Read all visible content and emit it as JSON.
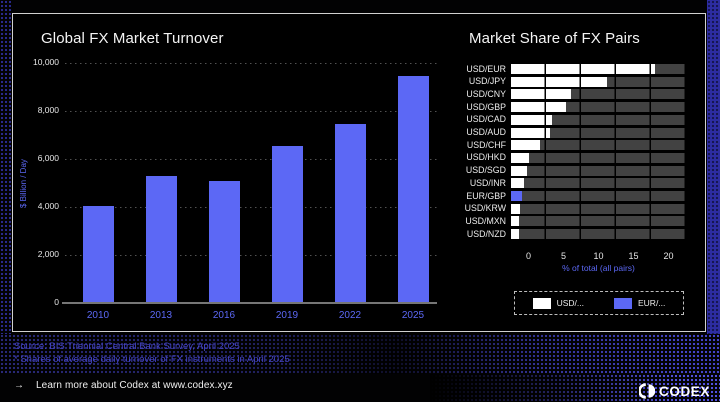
{
  "page": {
    "accent": "#5c68f5",
    "source_color": "#4646c8",
    "panel_border": "#d0d0d0",
    "track_color": "#424242"
  },
  "chart_data": [
    {
      "type": "bar",
      "title": "Global FX Market Turnover",
      "ylabel": "$ Billion / Day",
      "categories": [
        "2010",
        "2013",
        "2016",
        "2019",
        "2022",
        "2025"
      ],
      "values": [
        4000,
        5250,
        5050,
        6500,
        7400,
        9400
      ],
      "yticks": [
        0,
        2000,
        4000,
        6000,
        8000,
        10000
      ],
      "ylim": [
        0,
        10000
      ],
      "grid": "dotted-horizontal",
      "bar_color": "#5c68f5"
    },
    {
      "type": "bar-horizontal",
      "title": "Market Share of FX Pairs",
      "xlabel": "% of total (all pairs)",
      "xticks": [
        0,
        5,
        10,
        15,
        20
      ],
      "xlim": [
        0,
        25
      ],
      "grid": "segmented-track",
      "rows": [
        {
          "pair": "USD/EUR",
          "value": 20.6,
          "group": "USD"
        },
        {
          "pair": "USD/JPY",
          "value": 13.7,
          "group": "USD"
        },
        {
          "pair": "USD/CNY",
          "value": 8.6,
          "group": "USD"
        },
        {
          "pair": "USD/GBP",
          "value": 7.8,
          "group": "USD"
        },
        {
          "pair": "USD/CAD",
          "value": 5.8,
          "group": "USD"
        },
        {
          "pair": "USD/AUD",
          "value": 5.5,
          "group": "USD"
        },
        {
          "pair": "USD/CHF",
          "value": 4.2,
          "group": "USD"
        },
        {
          "pair": "USD/HKD",
          "value": 2.5,
          "group": "USD"
        },
        {
          "pair": "USD/SGD",
          "value": 2.3,
          "group": "USD"
        },
        {
          "pair": "USD/INR",
          "value": 1.9,
          "group": "USD"
        },
        {
          "pair": "EUR/GBP",
          "value": 1.6,
          "group": "EUR"
        },
        {
          "pair": "USD/KRW",
          "value": 1.3,
          "group": "USD"
        },
        {
          "pair": "USD/MXN",
          "value": 1.2,
          "group": "USD"
        },
        {
          "pair": "USD/NZD",
          "value": 1.1,
          "group": "USD"
        }
      ],
      "legend": [
        {
          "label": "USD/...",
          "group": "USD",
          "color": "#ffffff"
        },
        {
          "label": "EUR/...",
          "group": "EUR",
          "color": "#5c68f5"
        }
      ],
      "legend_position": "bottom"
    }
  ],
  "source": {
    "line1": "Source: BIS Triennial Central Bank Survey, April 2025",
    "line2": "* Shares of average daily turnover of FX instruments in April 2025"
  },
  "footer": {
    "arrow": "→",
    "link_text": "Learn more about Codex at www.codex.xyz",
    "brand": "CODEX"
  }
}
